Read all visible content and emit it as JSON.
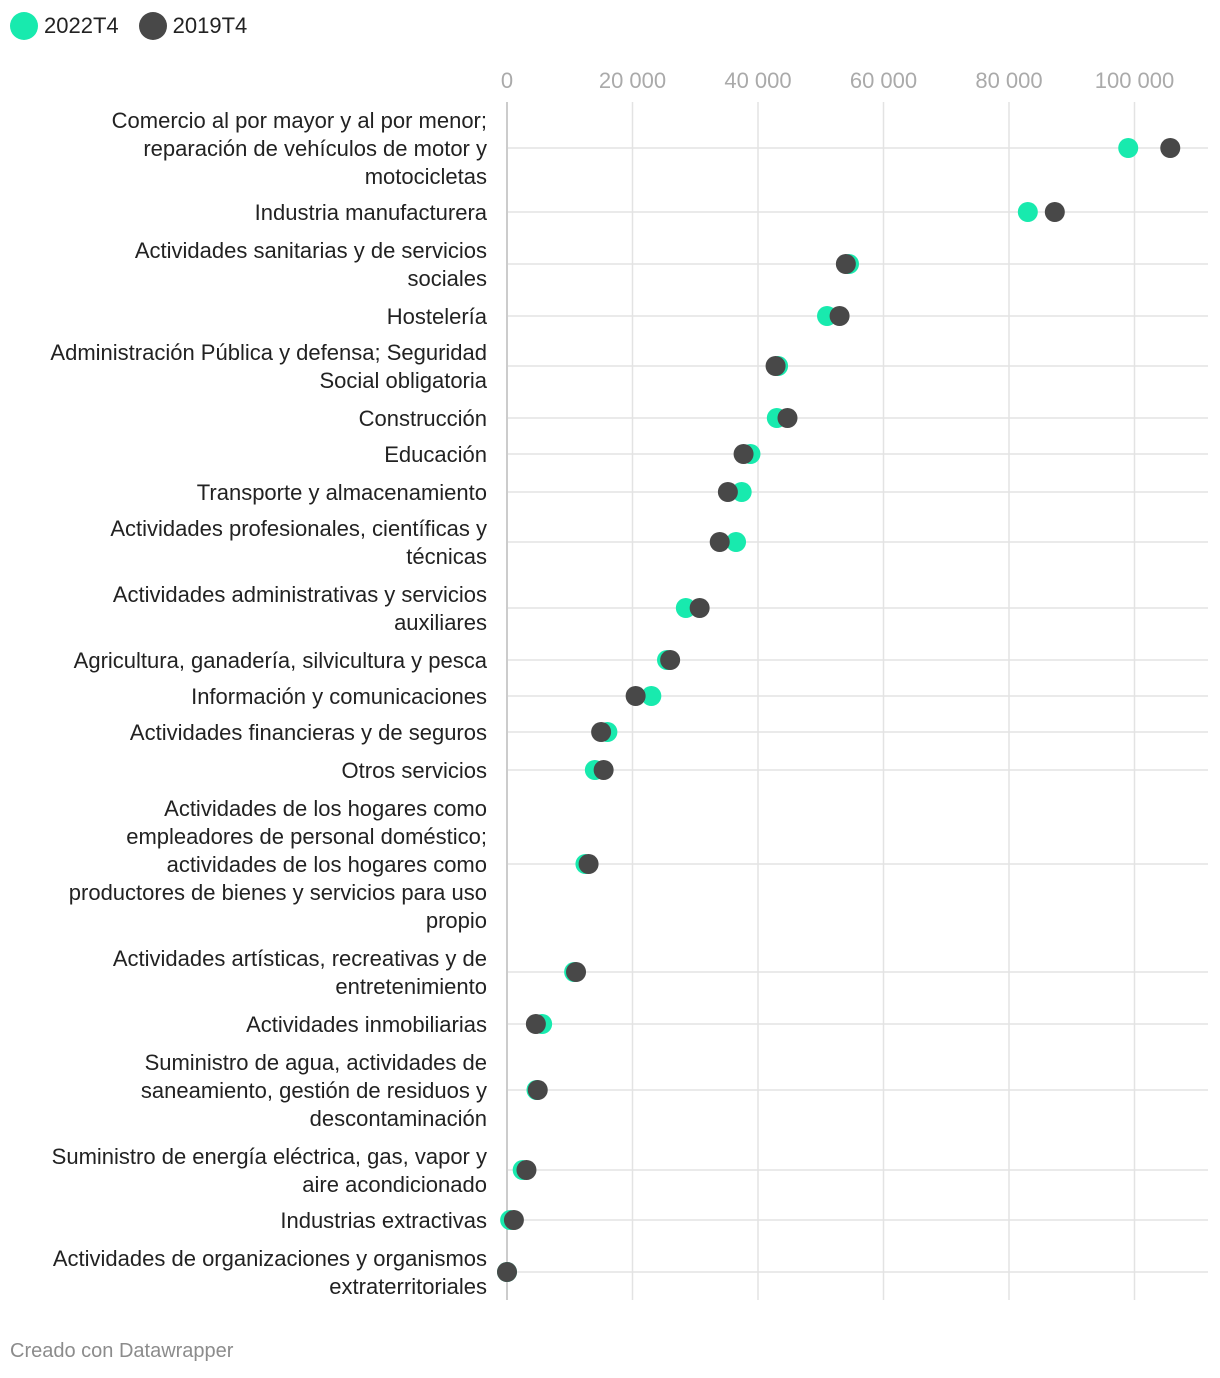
{
  "colors": {
    "2022T4": "#18eaae",
    "2019T4": "#484848",
    "grid": "#e3e3e3",
    "axis": "#cccccc"
  },
  "footer": "Creado con Datawrapper",
  "chart_data": {
    "type": "scatter",
    "subtype": "dot-plot",
    "title": "",
    "xlabel": "",
    "ylabel": "",
    "xlim": [
      0,
      107000
    ],
    "xticks": [
      0,
      20000,
      40000,
      60000,
      80000,
      100000
    ],
    "xtick_labels": [
      "0",
      "20 000",
      "40 000",
      "60 000",
      "80 000",
      "100 000"
    ],
    "legend": "top-left",
    "grid": true,
    "series": [
      {
        "name": "2022T4",
        "color": "#18eaae",
        "values": [
          99000,
          83000,
          54500,
          51000,
          43200,
          43000,
          38800,
          37400,
          36500,
          28500,
          25500,
          23000,
          16000,
          14000,
          12500,
          10700,
          5600,
          4700,
          2500,
          500,
          0
        ]
      },
      {
        "name": "2019T4",
        "color": "#484848",
        "values": [
          105700,
          87300,
          54000,
          53000,
          42800,
          44700,
          37700,
          35200,
          33900,
          30700,
          26000,
          20500,
          15000,
          15400,
          13000,
          11000,
          4600,
          4900,
          3100,
          1100,
          0
        ]
      }
    ],
    "categories": [
      {
        "lines": [
          "Comercio al por mayor y al por menor;",
          "reparación de vehículos de motor y",
          "motocicletas"
        ]
      },
      {
        "lines": [
          "Industria manufacturera"
        ]
      },
      {
        "lines": [
          "Actividades sanitarias y de servicios",
          "sociales"
        ]
      },
      {
        "lines": [
          "Hostelería"
        ]
      },
      {
        "lines": [
          "Administración Pública y defensa; Seguridad",
          "Social obligatoria"
        ]
      },
      {
        "lines": [
          "Construcción"
        ]
      },
      {
        "lines": [
          "Educación"
        ]
      },
      {
        "lines": [
          "Transporte y almacenamiento"
        ]
      },
      {
        "lines": [
          "Actividades profesionales, científicas y",
          "técnicas"
        ]
      },
      {
        "lines": [
          "Actividades administrativas y servicios",
          "auxiliares"
        ]
      },
      {
        "lines": [
          "Agricultura, ganadería, silvicultura y pesca"
        ]
      },
      {
        "lines": [
          "Información y comunicaciones"
        ]
      },
      {
        "lines": [
          "Actividades financieras y de seguros"
        ]
      },
      {
        "lines": [
          "Otros servicios"
        ]
      },
      {
        "lines": [
          "Actividades de los hogares como",
          "empleadores de personal doméstico;",
          "actividades de los hogares como",
          "productores de bienes y servicios para uso",
          "propio"
        ]
      },
      {
        "lines": [
          "Actividades artísticas, recreativas y de",
          "entretenimiento"
        ]
      },
      {
        "lines": [
          "Actividades inmobiliarias"
        ]
      },
      {
        "lines": [
          "Suministro de agua, actividades de",
          "saneamiento, gestión de residuos y",
          "descontaminación"
        ]
      },
      {
        "lines": [
          "Suministro de energía eléctrica, gas, vapor y",
          "aire acondicionado"
        ]
      },
      {
        "lines": [
          "Industrias extractivas"
        ]
      },
      {
        "lines": [
          "Actividades de organizaciones y organismos",
          "extraterritoriales"
        ]
      }
    ]
  }
}
